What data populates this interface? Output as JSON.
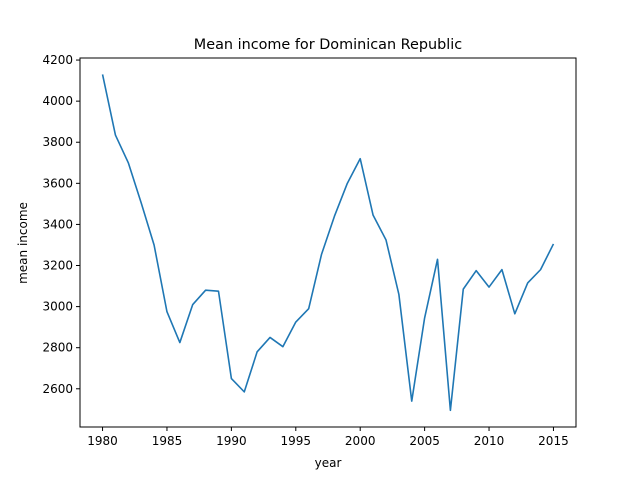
{
  "chart_data": {
    "type": "line",
    "title": "Mean income for Dominican Republic",
    "xlabel": "year",
    "ylabel": "mean income",
    "xlim": [
      1978.25,
      2016.75
    ],
    "ylim": [
      2414,
      4210
    ],
    "xticks": [
      1980,
      1985,
      1990,
      1995,
      2000,
      2005,
      2010,
      2015
    ],
    "yticks": [
      2600,
      2800,
      3000,
      3200,
      3400,
      3600,
      3800,
      4000,
      4200
    ],
    "grid": false,
    "line_color": "#1f77b4",
    "series": [
      {
        "x": [
          1980,
          1981,
          1982,
          1983,
          1984,
          1985,
          1986,
          1987,
          1988,
          1989,
          1990,
          1991,
          1992,
          1993,
          1994,
          1995,
          1996,
          1997,
          1998,
          1999,
          2000,
          2001,
          2002,
          2003,
          2004,
          2005,
          2006,
          2007,
          2008,
          2009,
          2010,
          2011,
          2012,
          2013,
          2014,
          2015
        ],
        "values": [
          4130,
          3835,
          3700,
          3505,
          3300,
          2975,
          2825,
          3010,
          3080,
          3075,
          2650,
          2585,
          2780,
          2850,
          2805,
          2925,
          2990,
          3255,
          3440,
          3600,
          3720,
          3445,
          3325,
          3060,
          2540,
          2945,
          3230,
          2495,
          3085,
          3175,
          3095,
          3180,
          2965,
          3115,
          3180,
          3305
        ]
      }
    ]
  }
}
